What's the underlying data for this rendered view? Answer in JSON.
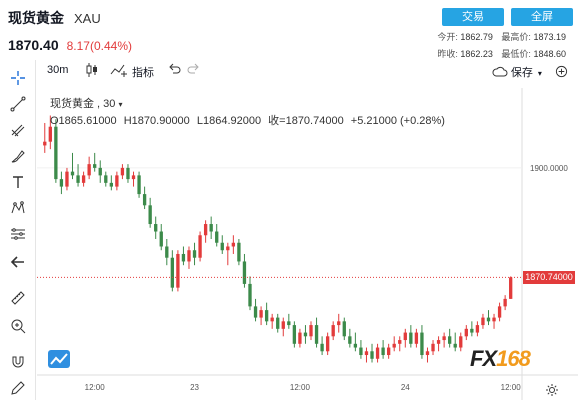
{
  "header": {
    "title": "现货黄金",
    "symbol": "XAU",
    "price": "1870.40",
    "change": "8.17(0.44%)",
    "trade_button": "交易",
    "fullscreen_button": "全屏",
    "stats_row1": [
      {
        "label": "今开:",
        "value": "1862.79"
      },
      {
        "label": "最高价:",
        "value": "1873.19"
      }
    ],
    "stats_row2": [
      {
        "label": "昨收:",
        "value": "1862.23"
      },
      {
        "label": "最低价:",
        "value": "1848.60"
      }
    ]
  },
  "toolbar": {
    "interval": "30m",
    "indicators": "指标",
    "save": "保存"
  },
  "legend": {
    "symbol_label": "现货黄金 , 30",
    "open": "O1865.61000",
    "high": "H1870.90000",
    "low": "L1864.92000",
    "close": "收=1870.74000",
    "change": "+5.21000 (+0.28%)"
  },
  "sidebar_tools": [
    "crosshair-icon",
    "line-tool-icon",
    "fib-tool-icon",
    "brush-icon",
    "text-tool-icon",
    "pattern-tool-icon",
    "measure-tool-icon",
    "back-arrow-icon",
    "ruler-icon",
    "zoom-in-icon",
    "magnet-icon",
    "pencil-lock-icon"
  ],
  "logo": {
    "fx": "FX",
    "num": "168"
  },
  "chart_data": {
    "type": "candlestick",
    "y_axis_ticks": [
      {
        "value": 1900,
        "label": "1900.0000"
      }
    ],
    "last_price": 1870.74,
    "last_price_label": "1870.74000",
    "ylim": [
      1846,
      1916
    ],
    "x_ticks": [
      {
        "index": 9,
        "label": "12:00"
      },
      {
        "index": 27,
        "label": "23"
      },
      {
        "index": 46,
        "label": "12:00"
      },
      {
        "index": 65,
        "label": "24"
      },
      {
        "index": 84,
        "label": "12:00"
      }
    ],
    "x_count": 86,
    "candles": [
      [
        1906,
        1912,
        1904,
        1907
      ],
      [
        1907,
        1914,
        1905,
        1911
      ],
      [
        1911,
        1913,
        1896,
        1897
      ],
      [
        1897,
        1899,
        1893,
        1895
      ],
      [
        1895,
        1900,
        1894,
        1899
      ],
      [
        1899,
        1904,
        1897,
        1898
      ],
      [
        1898,
        1901,
        1895,
        1896
      ],
      [
        1896,
        1899,
        1895,
        1898
      ],
      [
        1898,
        1903,
        1897,
        1901
      ],
      [
        1901,
        1904,
        1899,
        1900
      ],
      [
        1900,
        1902,
        1896,
        1898
      ],
      [
        1898,
        1899,
        1895,
        1896
      ],
      [
        1896,
        1898,
        1894,
        1895
      ],
      [
        1895,
        1899,
        1894,
        1898
      ],
      [
        1898,
        1901,
        1897,
        1900
      ],
      [
        1900,
        1901,
        1896,
        1897
      ],
      [
        1897,
        1899,
        1895,
        1898
      ],
      [
        1898,
        1899,
        1892,
        1893
      ],
      [
        1893,
        1895,
        1889,
        1890
      ],
      [
        1890,
        1892,
        1884,
        1885
      ],
      [
        1885,
        1887,
        1881,
        1883
      ],
      [
        1883,
        1885,
        1878,
        1879
      ],
      [
        1879,
        1881,
        1874,
        1876
      ],
      [
        1876,
        1878,
        1867,
        1868
      ],
      [
        1868,
        1878,
        1867,
        1877
      ],
      [
        1877,
        1879,
        1874,
        1875
      ],
      [
        1875,
        1879,
        1873,
        1878
      ],
      [
        1878,
        1880,
        1874,
        1876
      ],
      [
        1876,
        1883,
        1875,
        1882
      ],
      [
        1882,
        1886,
        1880,
        1885
      ],
      [
        1885,
        1887,
        1881,
        1883
      ],
      [
        1883,
        1885,
        1879,
        1880
      ],
      [
        1880,
        1882,
        1877,
        1878
      ],
      [
        1878,
        1880,
        1874,
        1879
      ],
      [
        1879,
        1882,
        1877,
        1880
      ],
      [
        1880,
        1881,
        1874,
        1875
      ],
      [
        1875,
        1877,
        1868,
        1869
      ],
      [
        1869,
        1871,
        1862,
        1863
      ],
      [
        1863,
        1865,
        1859,
        1860
      ],
      [
        1860,
        1863,
        1858,
        1862
      ],
      [
        1862,
        1864,
        1858,
        1859
      ],
      [
        1859,
        1861,
        1857,
        1860
      ],
      [
        1860,
        1861,
        1856,
        1857
      ],
      [
        1857,
        1860,
        1855,
        1859
      ],
      [
        1859,
        1861,
        1857,
        1858
      ],
      [
        1858,
        1859,
        1852,
        1853
      ],
      [
        1853,
        1857,
        1852,
        1856
      ],
      [
        1856,
        1858,
        1853,
        1855
      ],
      [
        1855,
        1859,
        1854,
        1858
      ],
      [
        1858,
        1860,
        1852,
        1853
      ],
      [
        1853,
        1855,
        1850,
        1851
      ],
      [
        1851,
        1856,
        1850,
        1855
      ],
      [
        1855,
        1859,
        1854,
        1858
      ],
      [
        1858,
        1861,
        1856,
        1859
      ],
      [
        1859,
        1860,
        1854,
        1855
      ],
      [
        1855,
        1857,
        1852,
        1853
      ],
      [
        1853,
        1856,
        1851,
        1852
      ],
      [
        1852,
        1854,
        1849,
        1850
      ],
      [
        1850,
        1852,
        1848,
        1851
      ],
      [
        1851,
        1853,
        1848,
        1849
      ],
      [
        1849,
        1853,
        1848,
        1852
      ],
      [
        1852,
        1854,
        1849,
        1850
      ],
      [
        1850,
        1853,
        1849,
        1852
      ],
      [
        1852,
        1855,
        1851,
        1853
      ],
      [
        1853,
        1855,
        1851,
        1854
      ],
      [
        1854,
        1857,
        1852,
        1856
      ],
      [
        1856,
        1858,
        1852,
        1853
      ],
      [
        1853,
        1857,
        1852,
        1856
      ],
      [
        1856,
        1858,
        1849,
        1850
      ],
      [
        1850,
        1852,
        1848,
        1851
      ],
      [
        1851,
        1854,
        1850,
        1853
      ],
      [
        1853,
        1855,
        1851,
        1854
      ],
      [
        1854,
        1856,
        1852,
        1855
      ],
      [
        1855,
        1857,
        1852,
        1853
      ],
      [
        1853,
        1856,
        1851,
        1852
      ],
      [
        1852,
        1856,
        1851,
        1855
      ],
      [
        1855,
        1858,
        1854,
        1857
      ],
      [
        1857,
        1859,
        1855,
        1856
      ],
      [
        1856,
        1859,
        1855,
        1858
      ],
      [
        1858,
        1861,
        1857,
        1860
      ],
      [
        1860,
        1862,
        1858,
        1859
      ],
      [
        1859,
        1861,
        1857,
        1860
      ],
      [
        1860,
        1864,
        1859,
        1863
      ],
      [
        1863,
        1866,
        1862,
        1865
      ],
      [
        1865,
        1871,
        1865,
        1870.74
      ]
    ]
  }
}
